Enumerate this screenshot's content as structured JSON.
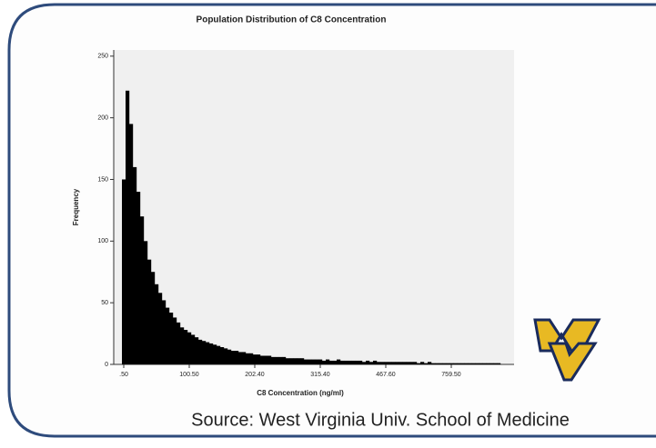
{
  "chart_data": {
    "type": "bar",
    "title": "Population Distribution of C8 Concentration",
    "x_label": "C8 Concentration (ng/ml)",
    "y_label": "Frequency",
    "color": "#000000",
    "categories": [
      ".50",
      null,
      null,
      null,
      null,
      null,
      null,
      null,
      null,
      null,
      null,
      null,
      null,
      null,
      null,
      null,
      null,
      null,
      "100.50",
      null,
      null,
      null,
      null,
      null,
      null,
      null,
      null,
      null,
      null,
      null,
      null,
      null,
      null,
      null,
      null,
      null,
      "202.40",
      null,
      null,
      null,
      null,
      null,
      null,
      null,
      null,
      null,
      null,
      null,
      null,
      null,
      null,
      null,
      null,
      null,
      "315.40",
      null,
      null,
      null,
      null,
      null,
      null,
      null,
      null,
      null,
      null,
      null,
      null,
      null,
      null,
      null,
      null,
      null,
      "467.60",
      null,
      null,
      null,
      null,
      null,
      null,
      null,
      null,
      null,
      null,
      null,
      null,
      null,
      null,
      null,
      null,
      null,
      "759.50",
      null,
      null,
      null,
      null,
      null,
      null,
      null,
      null,
      null,
      null,
      null,
      null,
      null
    ],
    "values": [
      150,
      222,
      195,
      160,
      140,
      120,
      100,
      85,
      75,
      65,
      58,
      52,
      46,
      42,
      38,
      34,
      30,
      28,
      26,
      24,
      22,
      20,
      19,
      18,
      17,
      16,
      15,
      14,
      13,
      12,
      11,
      11,
      10,
      10,
      9,
      9,
      8,
      8,
      7,
      7,
      7,
      6,
      6,
      6,
      6,
      5,
      5,
      5,
      5,
      5,
      4,
      4,
      4,
      4,
      4,
      3,
      4,
      3,
      3,
      4,
      3,
      3,
      3,
      3,
      3,
      3,
      2,
      3,
      2,
      3,
      2,
      2,
      2,
      2,
      2,
      2,
      2,
      2,
      2,
      2,
      2,
      1,
      2,
      1,
      2,
      1,
      1,
      1,
      1,
      1,
      1,
      1,
      1,
      1,
      1,
      1,
      1,
      1,
      1,
      1,
      1,
      1,
      1,
      1
    ],
    "ylim": [
      0,
      255
    ],
    "yticks": [
      0,
      50,
      100,
      150,
      200,
      250
    ]
  },
  "source": "Source: West Virginia Univ. School of Medicine"
}
